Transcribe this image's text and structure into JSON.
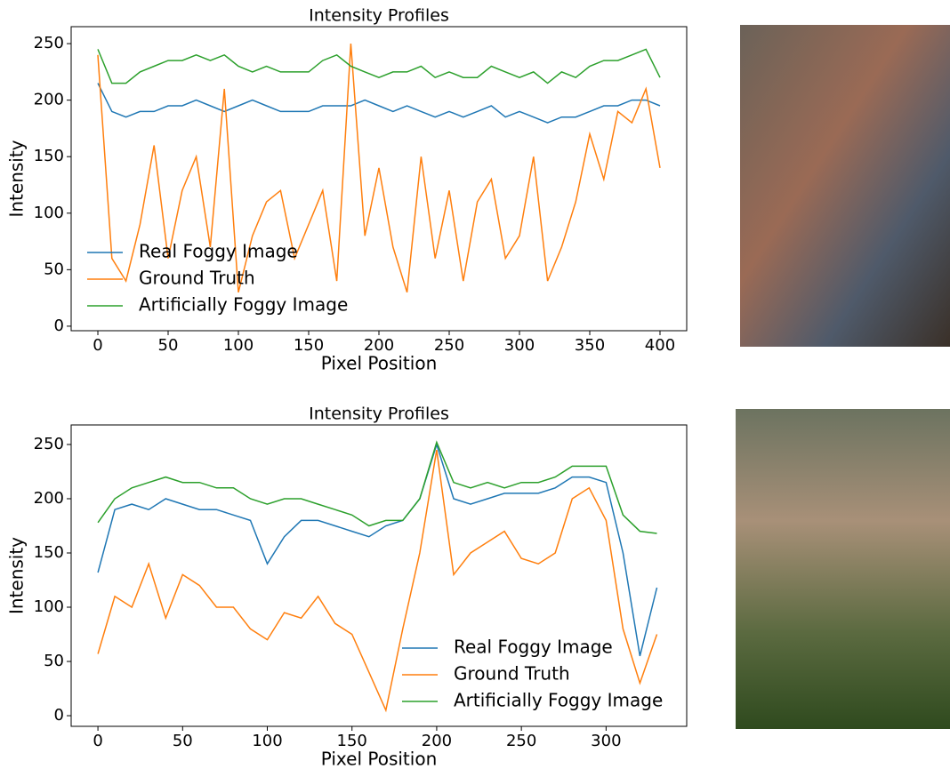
{
  "chart_data": [
    {
      "type": "line",
      "title": "Intensity Profiles",
      "x_label": "Pixel Position",
      "y_label": "Intensity",
      "x": [
        0,
        10,
        20,
        30,
        40,
        50,
        60,
        70,
        80,
        90,
        100,
        110,
        120,
        130,
        140,
        150,
        160,
        170,
        180,
        190,
        200,
        210,
        220,
        230,
        240,
        250,
        260,
        270,
        280,
        290,
        300,
        310,
        320,
        330,
        340,
        350,
        360,
        370,
        380,
        390,
        400
      ],
      "series": [
        {
          "name": "Real Foggy Image",
          "color": "#1f77b4",
          "values": [
            215,
            190,
            185,
            190,
            190,
            195,
            195,
            200,
            195,
            190,
            195,
            200,
            195,
            190,
            190,
            190,
            195,
            195,
            195,
            200,
            195,
            190,
            195,
            190,
            185,
            190,
            185,
            190,
            195,
            185,
            190,
            185,
            180,
            185,
            185,
            190,
            195,
            195,
            200,
            200,
            195
          ]
        },
        {
          "name": "Ground Truth",
          "color": "#ff7f0e",
          "values": [
            240,
            60,
            40,
            90,
            160,
            60,
            120,
            150,
            70,
            210,
            30,
            80,
            110,
            120,
            60,
            90,
            120,
            40,
            250,
            80,
            140,
            70,
            30,
            150,
            60,
            120,
            40,
            110,
            130,
            60,
            80,
            150,
            40,
            70,
            110,
            170,
            130,
            190,
            180,
            210,
            140
          ]
        },
        {
          "name": "Artificially Foggy Image",
          "color": "#2ca02c",
          "values": [
            245,
            215,
            215,
            225,
            230,
            235,
            235,
            240,
            235,
            240,
            230,
            225,
            230,
            225,
            225,
            225,
            235,
            240,
            230,
            225,
            220,
            225,
            225,
            230,
            220,
            225,
            220,
            220,
            230,
            225,
            220,
            225,
            215,
            225,
            220,
            230,
            235,
            235,
            240,
            245,
            220
          ]
        }
      ],
      "xlim": [
        -19,
        419
      ],
      "ylim": [
        -4,
        265
      ],
      "xticks": [
        0,
        50,
        100,
        150,
        200,
        250,
        300,
        350,
        400
      ],
      "yticks": [
        0,
        50,
        100,
        150,
        200,
        250
      ],
      "legend": "lower left"
    },
    {
      "type": "line",
      "title": "Intensity Profiles",
      "x_label": "Pixel Position",
      "y_label": "Intensity",
      "x": [
        0,
        10,
        20,
        30,
        40,
        50,
        60,
        70,
        80,
        90,
        100,
        110,
        120,
        130,
        140,
        150,
        160,
        170,
        180,
        190,
        200,
        210,
        220,
        230,
        240,
        250,
        260,
        270,
        280,
        290,
        300,
        310,
        320,
        330
      ],
      "series": [
        {
          "name": "Real Foggy Image",
          "color": "#1f77b4",
          "values": [
            132,
            190,
            195,
            190,
            200,
            195,
            190,
            190,
            185,
            180,
            140,
            165,
            180,
            180,
            175,
            170,
            165,
            175,
            180,
            200,
            250,
            200,
            195,
            200,
            205,
            205,
            205,
            210,
            220,
            220,
            215,
            150,
            55,
            118
          ]
        },
        {
          "name": "Ground Truth",
          "color": "#ff7f0e",
          "values": [
            57,
            110,
            100,
            140,
            90,
            130,
            120,
            100,
            100,
            80,
            70,
            95,
            90,
            110,
            85,
            75,
            40,
            5,
            80,
            150,
            245,
            130,
            150,
            160,
            170,
            145,
            140,
            150,
            200,
            210,
            180,
            80,
            30,
            75
          ]
        },
        {
          "name": "Artificially Foggy Image",
          "color": "#2ca02c",
          "values": [
            178,
            200,
            210,
            215,
            220,
            215,
            215,
            210,
            210,
            200,
            195,
            200,
            200,
            195,
            190,
            185,
            175,
            180,
            180,
            200,
            252,
            215,
            210,
            215,
            210,
            215,
            215,
            220,
            230,
            230,
            230,
            185,
            170,
            168
          ]
        }
      ],
      "xlim": [
        -15.8,
        347.6
      ],
      "ylim": [
        -9.8,
        268
      ],
      "xticks": [
        0,
        50,
        100,
        150,
        200,
        250,
        300
      ],
      "yticks": [
        0,
        50,
        100,
        150,
        200,
        250
      ],
      "legend": "lower right"
    }
  ]
}
